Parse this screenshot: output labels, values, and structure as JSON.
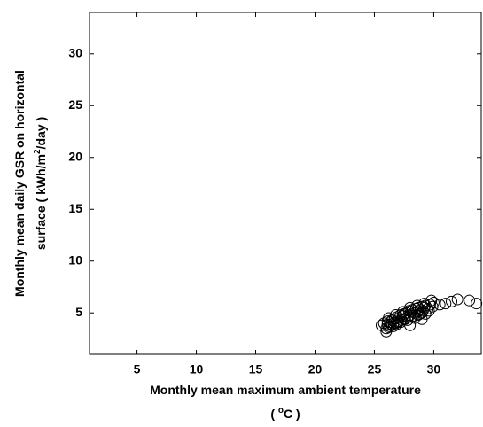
{
  "chart_data": {
    "type": "scatter",
    "xlabel": [
      "Monthly mean maximum ambient temperature",
      "( ",
      "o",
      "C )"
    ],
    "ylabel": [
      "Monthly mean daily GSR on horizontal",
      "surface ( kWh/m",
      "2",
      "/day )"
    ],
    "xlim": [
      1,
      34
    ],
    "ylim": [
      1,
      34
    ],
    "xticks": [
      5,
      10,
      15,
      20,
      25,
      30
    ],
    "yticks": [
      5,
      10,
      15,
      20,
      25,
      30
    ],
    "grid": false,
    "marker": "open-circle",
    "color": "#000000",
    "x": [
      25.6,
      25.8,
      26.0,
      26.1,
      26.2,
      26.3,
      26.4,
      26.5,
      26.6,
      26.7,
      26.8,
      26.9,
      27.0,
      27.1,
      27.2,
      27.3,
      27.4,
      27.5,
      27.6,
      27.7,
      27.8,
      27.9,
      28.0,
      28.1,
      28.2,
      28.3,
      28.4,
      28.5,
      28.6,
      28.7,
      28.8,
      28.9,
      29.0,
      29.1,
      29.2,
      29.3,
      29.5,
      29.7,
      29.9,
      30.0,
      26.0,
      26.3,
      26.6,
      26.9,
      27.2,
      27.5,
      27.8,
      28.1,
      28.4,
      28.7,
      29.0,
      29.3,
      29.6,
      26.2,
      26.8,
      27.4,
      28.0,
      28.6,
      29.2,
      29.8,
      30.5,
      31.0,
      31.5,
      32.0,
      33.0,
      33.6,
      26.1,
      27.0,
      28.0,
      29.0
    ],
    "y": [
      3.8,
      4.0,
      3.2,
      4.2,
      3.6,
      4.1,
      3.9,
      4.3,
      3.7,
      4.4,
      4.0,
      4.6,
      4.2,
      4.5,
      4.8,
      4.3,
      4.7,
      4.9,
      4.4,
      5.0,
      4.6,
      5.2,
      4.8,
      5.1,
      5.3,
      4.7,
      5.0,
      5.4,
      5.1,
      5.5,
      4.9,
      5.3,
      5.6,
      5.2,
      5.5,
      5.7,
      5.4,
      5.8,
      5.6,
      6.0,
      3.5,
      3.7,
      4.0,
      3.9,
      4.1,
      4.4,
      4.3,
      4.6,
      4.5,
      4.8,
      5.0,
      4.9,
      5.2,
      4.5,
      4.8,
      5.1,
      5.5,
      5.7,
      5.9,
      6.2,
      5.8,
      5.9,
      6.1,
      6.3,
      6.2,
      5.9,
      3.9,
      4.1,
      3.8,
      4.4
    ]
  }
}
